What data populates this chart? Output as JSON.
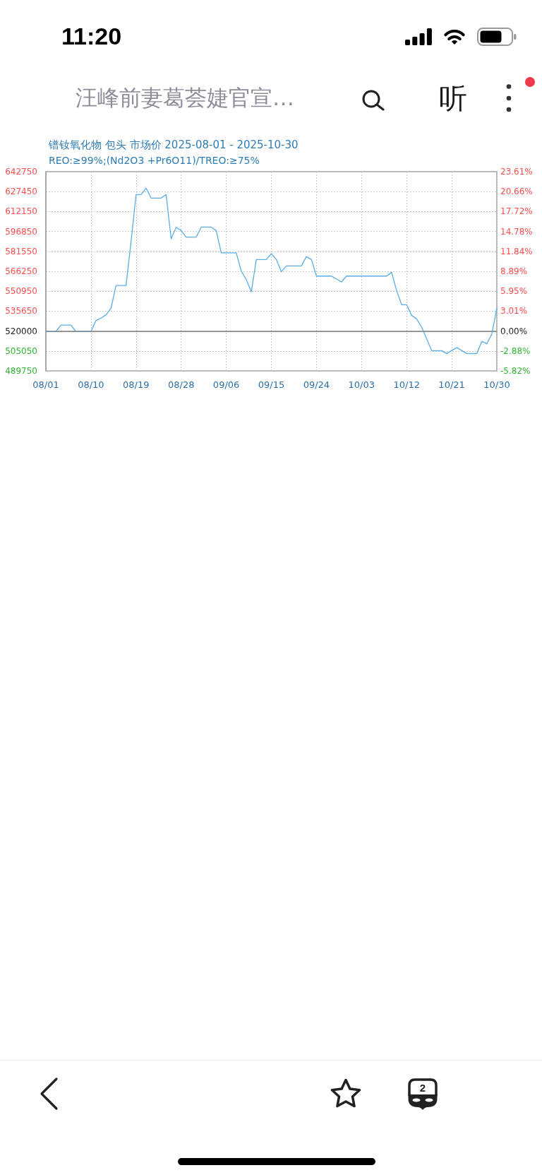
{
  "chart_data": {
    "type": "line",
    "title": "镨钕氧化物 包头 市场价 2025-08-01 - 2025-10-30",
    "subtitle": "REO:≥99%;(Nd2O3 +Pr6O11)/TREO:≥75%",
    "annotations": [
      "11:20",
      "汪峰前妻葛荟婕官宣…",
      "听",
      "2"
    ],
    "x": [
      "2025-08-01",
      "2025-08-03",
      "2025-08-04",
      "2025-08-06",
      "2025-08-07",
      "2025-08-10",
      "2025-08-11",
      "2025-08-12",
      "2025-08-13",
      "2025-08-14",
      "2025-08-15",
      "2025-08-17",
      "2025-08-18",
      "2025-08-19",
      "2025-08-20",
      "2025-08-21",
      "2025-08-22",
      "2025-08-24",
      "2025-08-25",
      "2025-08-26",
      "2025-08-27",
      "2025-08-28",
      "2025-08-29",
      "2025-08-31",
      "2025-09-01",
      "2025-09-03",
      "2025-09-04",
      "2025-09-05",
      "2025-09-08",
      "2025-09-09",
      "2025-09-10",
      "2025-09-11",
      "2025-09-12",
      "2025-09-14",
      "2025-09-15",
      "2025-09-16",
      "2025-09-17",
      "2025-09-18",
      "2025-09-21",
      "2025-09-22",
      "2025-09-23",
      "2025-09-24",
      "2025-09-27",
      "2025-09-29",
      "2025-09-30",
      "2025-10-08",
      "2025-10-09",
      "2025-10-10",
      "2025-10-11",
      "2025-10-12",
      "2025-10-13",
      "2025-10-14",
      "2025-10-15",
      "2025-10-17",
      "2025-10-19",
      "2025-10-20",
      "2025-10-22",
      "2025-10-24",
      "2025-10-26",
      "2025-10-27",
      "2025-10-28",
      "2025-10-29",
      "2025-10-30"
    ],
    "series": [
      {
        "color": "#5aaee8",
        "values": [
          520000,
          520000,
          525000,
          525000,
          520000,
          520000,
          528500,
          530300,
          532800,
          537900,
          555300,
          555300,
          589000,
          625200,
          625200,
          630100,
          622500,
          622500,
          625200,
          591200,
          600000,
          597500,
          592500,
          592500,
          600200,
          600200,
          597500,
          580400,
          580400,
          566400,
          559900,
          550500,
          575300,
          575300,
          579800,
          575300,
          565900,
          570400,
          570400,
          577600,
          575300,
          562600,
          562600,
          558100,
          562600,
          562600,
          565500,
          551400,
          540600,
          540600,
          532400,
          529700,
          523400,
          505300,
          505300,
          503100,
          507700,
          503100,
          503100,
          512500,
          510700,
          518000,
          537900
        ]
      }
    ],
    "xlim": [
      "2025-08-01",
      "2025-10-30"
    ],
    "xticks": [
      {
        "value": "2025-08-01",
        "label": "08/01"
      },
      {
        "value": "2025-08-10",
        "label": "08/10"
      },
      {
        "value": "2025-08-19",
        "label": "08/19"
      },
      {
        "value": "2025-08-28",
        "label": "08/28"
      },
      {
        "value": "2025-09-06",
        "label": "09/06"
      },
      {
        "value": "2025-09-15",
        "label": "09/15"
      },
      {
        "value": "2025-09-24",
        "label": "09/24"
      },
      {
        "value": "2025-10-03",
        "label": "10/03"
      },
      {
        "value": "2025-10-12",
        "label": "10/12"
      },
      {
        "value": "2025-10-21",
        "label": "10/21"
      },
      {
        "value": "2025-10-30",
        "label": "10/30"
      }
    ],
    "ylim": [
      489750,
      642750
    ],
    "yticks": [
      489750,
      505050,
      520000,
      535650,
      550950,
      566250,
      581550,
      596850,
      612150,
      627450,
      642750
    ],
    "y2lim": [
      -5.82,
      23.61
    ],
    "y2ticks": [
      {
        "value": -5.82,
        "label": "-5.82%"
      },
      {
        "value": -2.88,
        "label": "-2.88%"
      },
      {
        "value": 0,
        "label": "0.00%"
      },
      {
        "value": 3.01,
        "label": "3.01%"
      },
      {
        "value": 5.95,
        "label": "5.95%"
      },
      {
        "value": 8.89,
        "label": "8.89%"
      },
      {
        "value": 11.84,
        "label": "11.84%"
      },
      {
        "value": 14.78,
        "label": "14.78%"
      },
      {
        "value": 17.72,
        "label": "17.72%"
      },
      {
        "value": 20.66,
        "label": "20.66%"
      },
      {
        "value": 23.61,
        "label": "23.61%"
      }
    ],
    "ref_lines": [
      {
        "axis": "y",
        "value": 520000,
        "color": "#8c8c8c"
      }
    ],
    "grid": true,
    "marker": "none"
  }
}
